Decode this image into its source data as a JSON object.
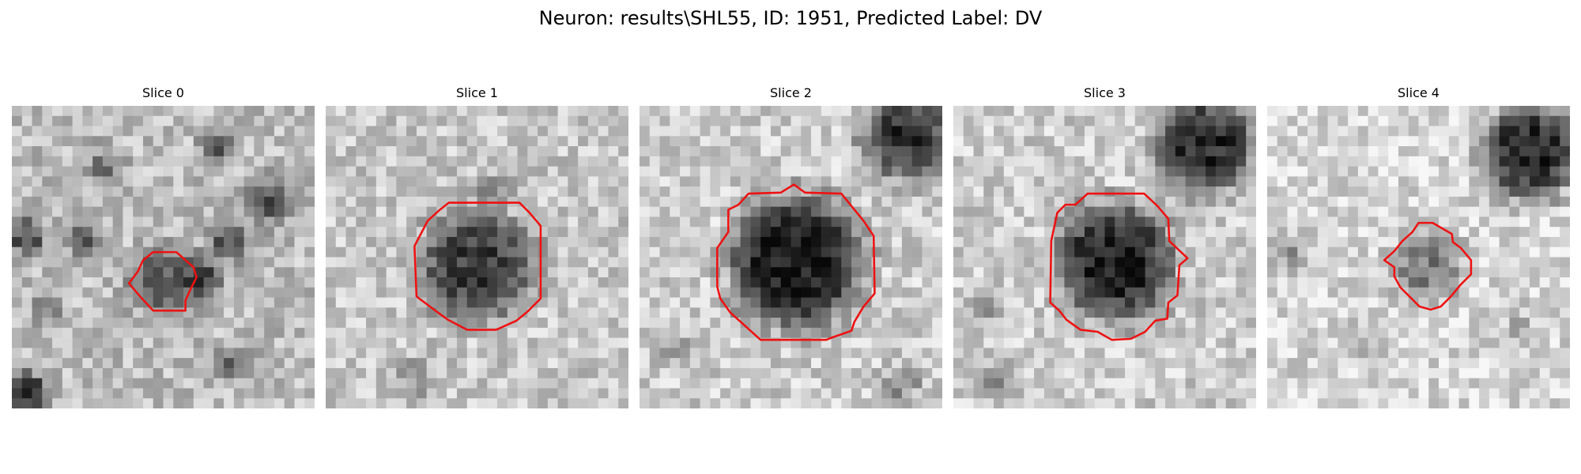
{
  "figure": {
    "title": "Neuron: results\\SHL55, ID: 1951, Predicted Label: DV"
  },
  "colors": {
    "contour": "#ee1111",
    "background": "#ffffff"
  },
  "panels": [
    {
      "title": "Slice 0"
    },
    {
      "title": "Slice 1"
    },
    {
      "title": "Slice 2"
    },
    {
      "title": "Slice 3"
    },
    {
      "title": "Slice 4"
    }
  ]
}
